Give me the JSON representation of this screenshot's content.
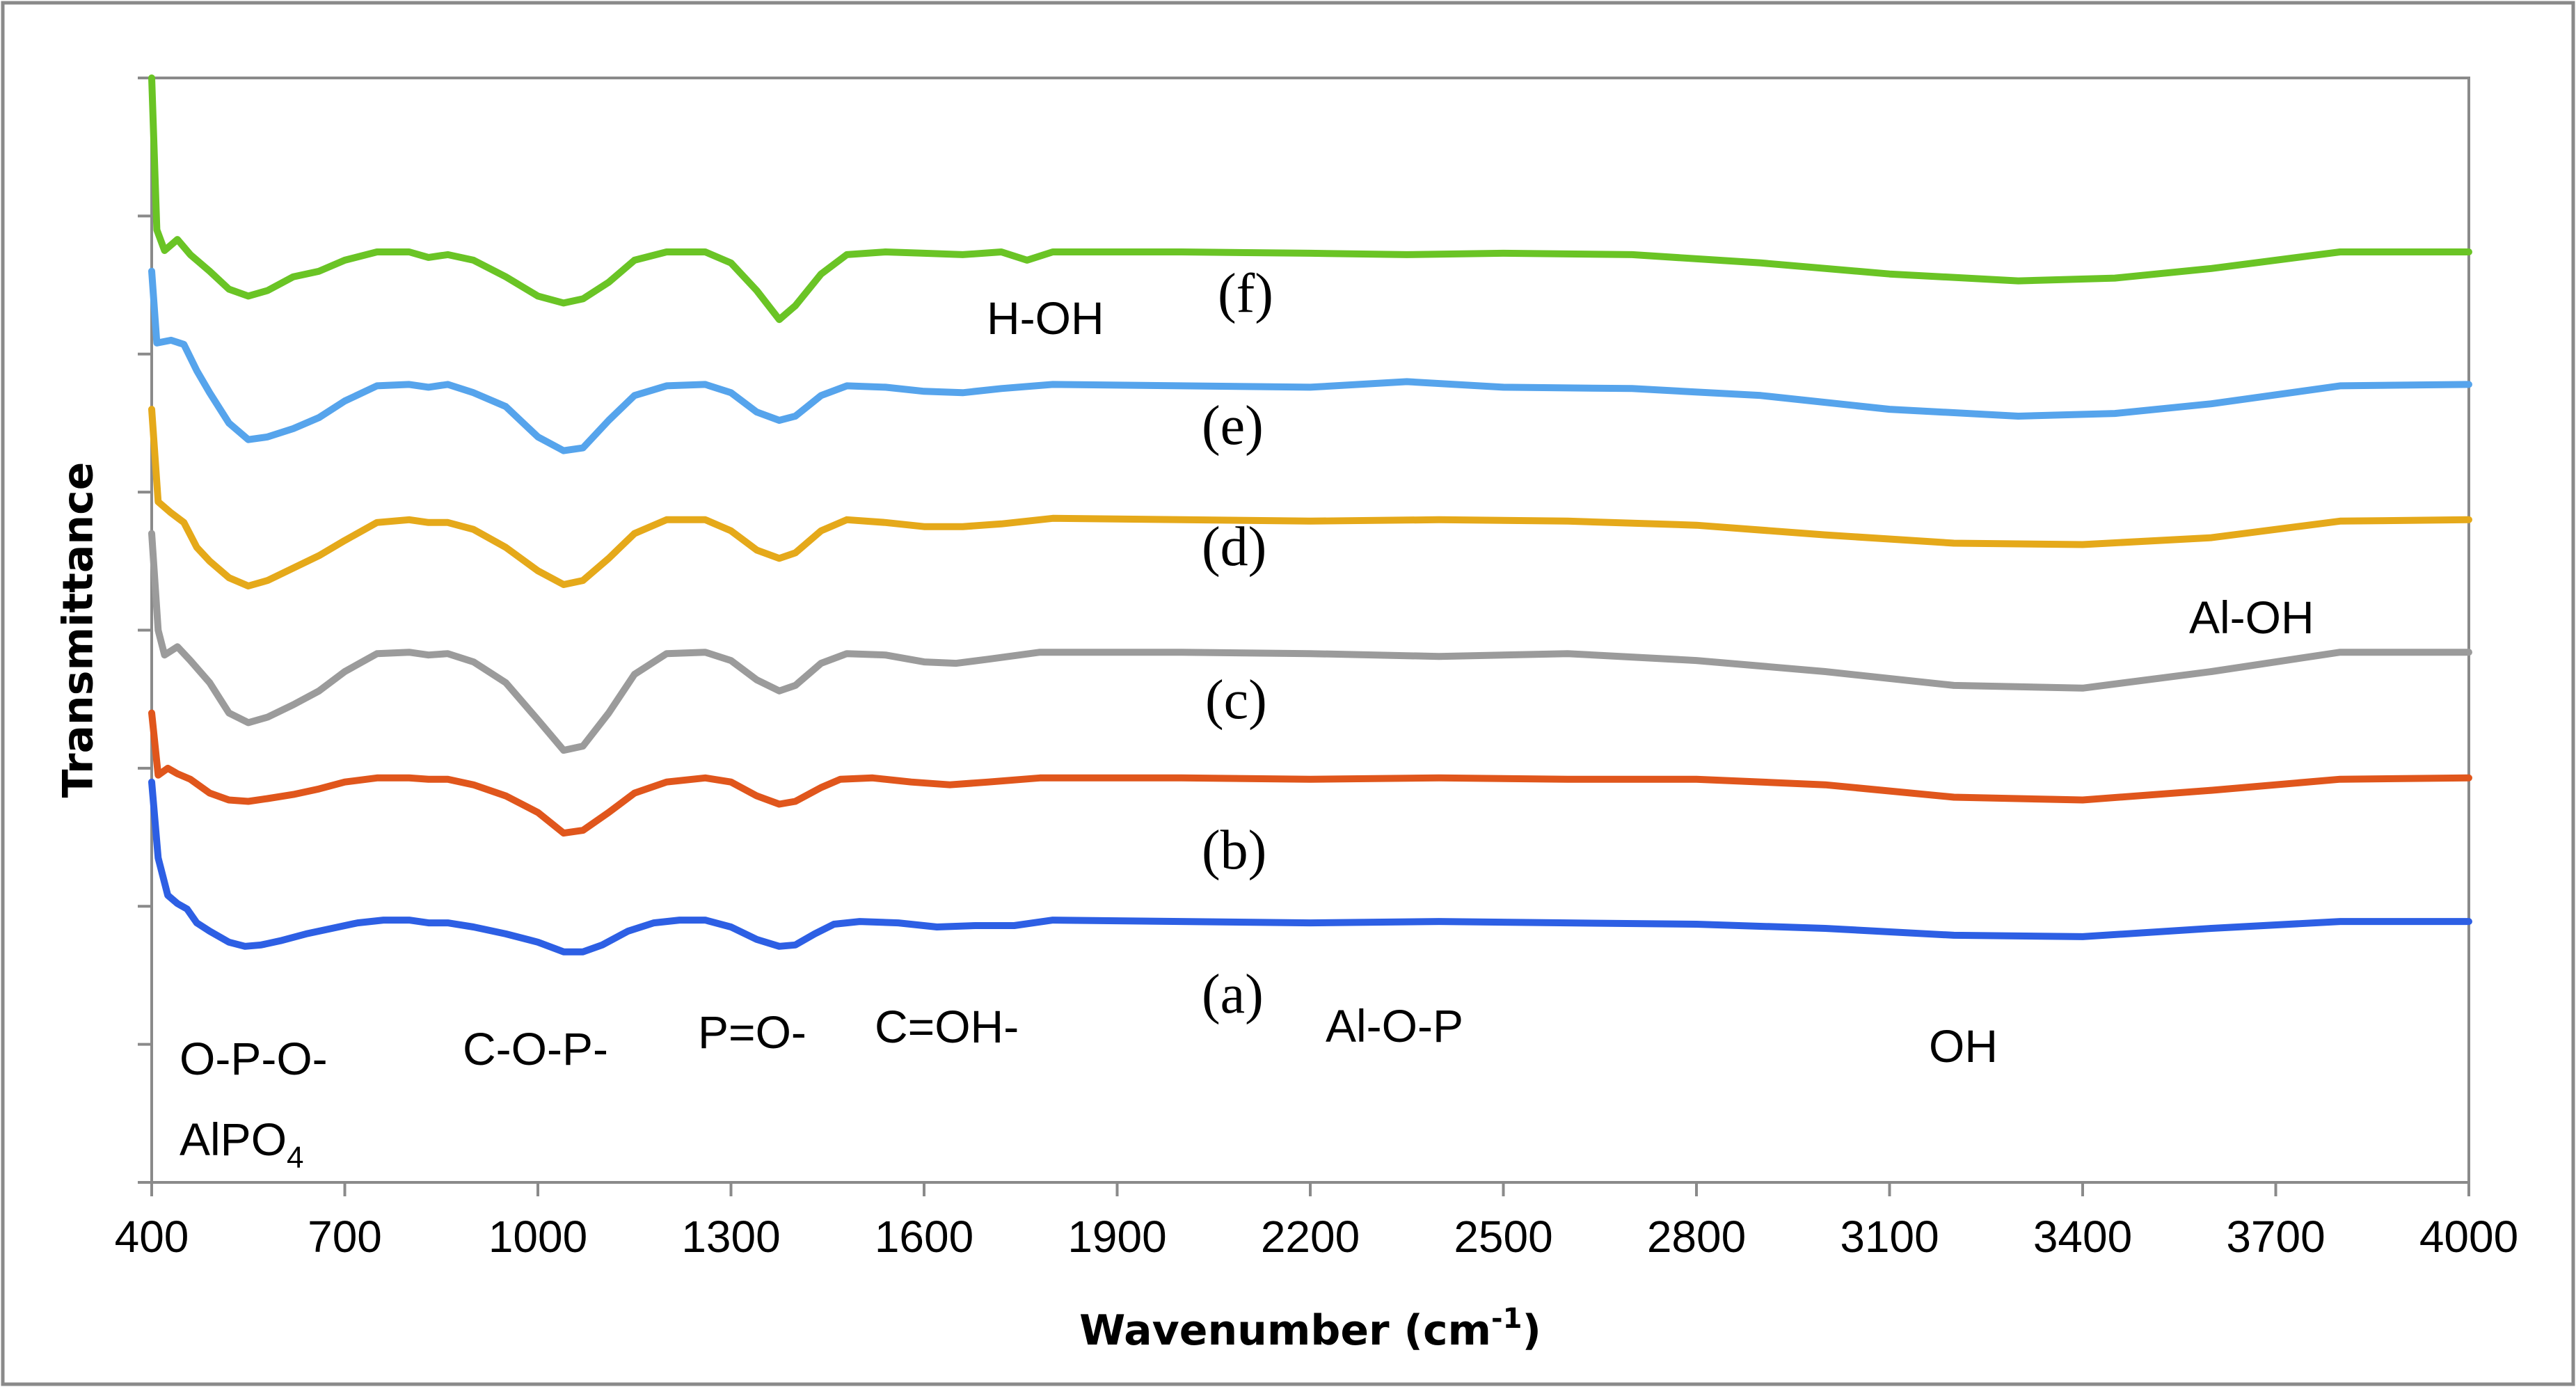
{
  "chart_data": {
    "type": "line",
    "title": "",
    "xlabel": "Wavenumber (cm",
    "xlabel_sup": "-1",
    "xlabel_suffix": ")",
    "ylabel": "Transmittance",
    "xlim": [
      400,
      4000
    ],
    "ylim": [
      0,
      8
    ],
    "grid": false,
    "x_ticks": [
      400,
      700,
      1000,
      1300,
      1600,
      1900,
      2200,
      2500,
      2800,
      3100,
      3400,
      3700,
      4000
    ],
    "x_tick_labels": [
      "400",
      "700",
      "1000",
      "1300",
      "1600",
      "1900",
      "2200",
      "2500",
      "2800",
      "3100",
      "3400",
      "3700",
      "4000"
    ],
    "y_ticks": [
      0,
      1,
      2,
      3,
      4,
      5,
      6,
      7,
      8
    ],
    "series": [
      {
        "name": "(a)",
        "color": "#2d5fe4",
        "points": [
          [
            400,
            2.9
          ],
          [
            410,
            2.35
          ],
          [
            425,
            2.08
          ],
          [
            440,
            2.02
          ],
          [
            455,
            1.98
          ],
          [
            470,
            1.88
          ],
          [
            490,
            1.82
          ],
          [
            520,
            1.74
          ],
          [
            545,
            1.71
          ],
          [
            570,
            1.72
          ],
          [
            600,
            1.75
          ],
          [
            640,
            1.8
          ],
          [
            680,
            1.84
          ],
          [
            720,
            1.88
          ],
          [
            760,
            1.9
          ],
          [
            800,
            1.9
          ],
          [
            830,
            1.88
          ],
          [
            860,
            1.88
          ],
          [
            900,
            1.85
          ],
          [
            950,
            1.8
          ],
          [
            1000,
            1.74
          ],
          [
            1040,
            1.67
          ],
          [
            1070,
            1.67
          ],
          [
            1100,
            1.72
          ],
          [
            1140,
            1.82
          ],
          [
            1180,
            1.88
          ],
          [
            1220,
            1.9
          ],
          [
            1260,
            1.9
          ],
          [
            1300,
            1.85
          ],
          [
            1340,
            1.76
          ],
          [
            1375,
            1.71
          ],
          [
            1400,
            1.72
          ],
          [
            1430,
            1.8
          ],
          [
            1460,
            1.87
          ],
          [
            1500,
            1.89
          ],
          [
            1560,
            1.88
          ],
          [
            1620,
            1.85
          ],
          [
            1680,
            1.86
          ],
          [
            1740,
            1.86
          ],
          [
            1800,
            1.9
          ],
          [
            2000,
            1.89
          ],
          [
            2200,
            1.88
          ],
          [
            2400,
            1.89
          ],
          [
            2600,
            1.88
          ],
          [
            2800,
            1.87
          ],
          [
            3000,
            1.84
          ],
          [
            3200,
            1.79
          ],
          [
            3400,
            1.78
          ],
          [
            3600,
            1.84
          ],
          [
            3800,
            1.89
          ],
          [
            4000,
            1.89
          ]
        ]
      },
      {
        "name": "(b)",
        "color": "#e0561c",
        "points": [
          [
            400,
            3.4
          ],
          [
            410,
            2.95
          ],
          [
            425,
            3.0
          ],
          [
            440,
            2.96
          ],
          [
            460,
            2.92
          ],
          [
            490,
            2.82
          ],
          [
            520,
            2.77
          ],
          [
            550,
            2.76
          ],
          [
            580,
            2.78
          ],
          [
            620,
            2.81
          ],
          [
            660,
            2.85
          ],
          [
            700,
            2.9
          ],
          [
            750,
            2.93
          ],
          [
            800,
            2.93
          ],
          [
            830,
            2.92
          ],
          [
            860,
            2.92
          ],
          [
            900,
            2.88
          ],
          [
            950,
            2.8
          ],
          [
            1000,
            2.68
          ],
          [
            1040,
            2.53
          ],
          [
            1070,
            2.55
          ],
          [
            1110,
            2.68
          ],
          [
            1150,
            2.82
          ],
          [
            1200,
            2.9
          ],
          [
            1260,
            2.93
          ],
          [
            1300,
            2.9
          ],
          [
            1340,
            2.8
          ],
          [
            1375,
            2.74
          ],
          [
            1400,
            2.76
          ],
          [
            1440,
            2.86
          ],
          [
            1470,
            2.92
          ],
          [
            1520,
            2.93
          ],
          [
            1580,
            2.9
          ],
          [
            1640,
            2.88
          ],
          [
            1700,
            2.9
          ],
          [
            1780,
            2.93
          ],
          [
            2000,
            2.93
          ],
          [
            2200,
            2.92
          ],
          [
            2400,
            2.93
          ],
          [
            2600,
            2.92
          ],
          [
            2800,
            2.92
          ],
          [
            3000,
            2.88
          ],
          [
            3200,
            2.79
          ],
          [
            3400,
            2.77
          ],
          [
            3600,
            2.84
          ],
          [
            3800,
            2.92
          ],
          [
            4000,
            2.93
          ]
        ]
      },
      {
        "name": "(c)",
        "color": "#9b9b9b",
        "points": [
          [
            400,
            4.7
          ],
          [
            410,
            4.0
          ],
          [
            420,
            3.82
          ],
          [
            440,
            3.88
          ],
          [
            460,
            3.78
          ],
          [
            490,
            3.62
          ],
          [
            520,
            3.4
          ],
          [
            550,
            3.33
          ],
          [
            580,
            3.37
          ],
          [
            620,
            3.46
          ],
          [
            660,
            3.56
          ],
          [
            700,
            3.7
          ],
          [
            750,
            3.83
          ],
          [
            800,
            3.84
          ],
          [
            830,
            3.82
          ],
          [
            860,
            3.83
          ],
          [
            900,
            3.77
          ],
          [
            950,
            3.62
          ],
          [
            1000,
            3.35
          ],
          [
            1040,
            3.13
          ],
          [
            1070,
            3.16
          ],
          [
            1110,
            3.4
          ],
          [
            1150,
            3.68
          ],
          [
            1200,
            3.83
          ],
          [
            1260,
            3.84
          ],
          [
            1300,
            3.78
          ],
          [
            1340,
            3.64
          ],
          [
            1375,
            3.56
          ],
          [
            1400,
            3.6
          ],
          [
            1440,
            3.76
          ],
          [
            1480,
            3.83
          ],
          [
            1540,
            3.82
          ],
          [
            1600,
            3.77
          ],
          [
            1650,
            3.76
          ],
          [
            1700,
            3.79
          ],
          [
            1780,
            3.84
          ],
          [
            2000,
            3.84
          ],
          [
            2200,
            3.83
          ],
          [
            2400,
            3.81
          ],
          [
            2600,
            3.83
          ],
          [
            2800,
            3.78
          ],
          [
            3000,
            3.7
          ],
          [
            3200,
            3.6
          ],
          [
            3400,
            3.58
          ],
          [
            3600,
            3.7
          ],
          [
            3800,
            3.84
          ],
          [
            4000,
            3.84
          ]
        ]
      },
      {
        "name": "(d)",
        "color": "#e5a91a",
        "points": [
          [
            400,
            5.6
          ],
          [
            410,
            4.93
          ],
          [
            430,
            4.85
          ],
          [
            450,
            4.78
          ],
          [
            470,
            4.6
          ],
          [
            490,
            4.5
          ],
          [
            520,
            4.38
          ],
          [
            550,
            4.32
          ],
          [
            580,
            4.36
          ],
          [
            620,
            4.45
          ],
          [
            660,
            4.54
          ],
          [
            700,
            4.65
          ],
          [
            750,
            4.78
          ],
          [
            800,
            4.8
          ],
          [
            830,
            4.78
          ],
          [
            860,
            4.78
          ],
          [
            900,
            4.73
          ],
          [
            950,
            4.6
          ],
          [
            1000,
            4.43
          ],
          [
            1040,
            4.33
          ],
          [
            1070,
            4.36
          ],
          [
            1110,
            4.52
          ],
          [
            1150,
            4.7
          ],
          [
            1200,
            4.8
          ],
          [
            1260,
            4.8
          ],
          [
            1300,
            4.72
          ],
          [
            1340,
            4.58
          ],
          [
            1375,
            4.52
          ],
          [
            1400,
            4.56
          ],
          [
            1440,
            4.72
          ],
          [
            1480,
            4.8
          ],
          [
            1540,
            4.78
          ],
          [
            1600,
            4.75
          ],
          [
            1660,
            4.75
          ],
          [
            1720,
            4.77
          ],
          [
            1800,
            4.81
          ],
          [
            2000,
            4.8
          ],
          [
            2200,
            4.79
          ],
          [
            2400,
            4.8
          ],
          [
            2600,
            4.79
          ],
          [
            2800,
            4.76
          ],
          [
            3000,
            4.69
          ],
          [
            3200,
            4.63
          ],
          [
            3400,
            4.62
          ],
          [
            3600,
            4.67
          ],
          [
            3800,
            4.79
          ],
          [
            4000,
            4.8
          ]
        ]
      },
      {
        "name": "(e)",
        "color": "#56a4ec",
        "points": [
          [
            400,
            6.6
          ],
          [
            408,
            6.08
          ],
          [
            430,
            6.1
          ],
          [
            450,
            6.07
          ],
          [
            470,
            5.88
          ],
          [
            490,
            5.72
          ],
          [
            520,
            5.5
          ],
          [
            550,
            5.38
          ],
          [
            580,
            5.4
          ],
          [
            620,
            5.46
          ],
          [
            660,
            5.54
          ],
          [
            700,
            5.66
          ],
          [
            750,
            5.77
          ],
          [
            800,
            5.78
          ],
          [
            830,
            5.76
          ],
          [
            860,
            5.78
          ],
          [
            900,
            5.72
          ],
          [
            950,
            5.62
          ],
          [
            1000,
            5.4
          ],
          [
            1040,
            5.3
          ],
          [
            1070,
            5.32
          ],
          [
            1110,
            5.52
          ],
          [
            1150,
            5.7
          ],
          [
            1200,
            5.77
          ],
          [
            1260,
            5.78
          ],
          [
            1300,
            5.72
          ],
          [
            1340,
            5.58
          ],
          [
            1375,
            5.52
          ],
          [
            1400,
            5.55
          ],
          [
            1440,
            5.7
          ],
          [
            1480,
            5.77
          ],
          [
            1540,
            5.76
          ],
          [
            1600,
            5.73
          ],
          [
            1660,
            5.72
          ],
          [
            1720,
            5.75
          ],
          [
            1800,
            5.78
          ],
          [
            2000,
            5.77
          ],
          [
            2200,
            5.76
          ],
          [
            2350,
            5.8
          ],
          [
            2500,
            5.76
          ],
          [
            2700,
            5.75
          ],
          [
            2900,
            5.7
          ],
          [
            3100,
            5.6
          ],
          [
            3300,
            5.55
          ],
          [
            3450,
            5.57
          ],
          [
            3600,
            5.64
          ],
          [
            3800,
            5.77
          ],
          [
            4000,
            5.78
          ]
        ]
      },
      {
        "name": "(f)",
        "color": "#6ac425",
        "points": [
          [
            400,
            8.0
          ],
          [
            408,
            6.9
          ],
          [
            420,
            6.75
          ],
          [
            440,
            6.83
          ],
          [
            460,
            6.72
          ],
          [
            490,
            6.6
          ],
          [
            520,
            6.47
          ],
          [
            550,
            6.42
          ],
          [
            580,
            6.46
          ],
          [
            620,
            6.56
          ],
          [
            660,
            6.6
          ],
          [
            700,
            6.68
          ],
          [
            750,
            6.74
          ],
          [
            800,
            6.74
          ],
          [
            830,
            6.7
          ],
          [
            860,
            6.72
          ],
          [
            900,
            6.68
          ],
          [
            950,
            6.56
          ],
          [
            1000,
            6.42
          ],
          [
            1040,
            6.37
          ],
          [
            1070,
            6.4
          ],
          [
            1110,
            6.52
          ],
          [
            1150,
            6.68
          ],
          [
            1200,
            6.74
          ],
          [
            1260,
            6.74
          ],
          [
            1300,
            6.66
          ],
          [
            1340,
            6.46
          ],
          [
            1375,
            6.25
          ],
          [
            1400,
            6.35
          ],
          [
            1440,
            6.58
          ],
          [
            1480,
            6.72
          ],
          [
            1540,
            6.74
          ],
          [
            1600,
            6.73
          ],
          [
            1660,
            6.72
          ],
          [
            1720,
            6.74
          ],
          [
            1760,
            6.68
          ],
          [
            1800,
            6.74
          ],
          [
            2000,
            6.74
          ],
          [
            2200,
            6.73
          ],
          [
            2350,
            6.72
          ],
          [
            2500,
            6.73
          ],
          [
            2700,
            6.72
          ],
          [
            2900,
            6.66
          ],
          [
            3100,
            6.58
          ],
          [
            3300,
            6.53
          ],
          [
            3450,
            6.55
          ],
          [
            3600,
            6.62
          ],
          [
            3800,
            6.74
          ],
          [
            4000,
            6.74
          ]
        ]
      }
    ],
    "annotations": [
      {
        "id": "band-opo",
        "text": "O-P-O-"
      },
      {
        "id": "band-alpo4",
        "text": "AlPO",
        "sub": "4"
      },
      {
        "id": "band-cop",
        "text": "C-O-P-"
      },
      {
        "id": "band-po",
        "text": "P=O-"
      },
      {
        "id": "band-coh",
        "text": "C=OH-"
      },
      {
        "id": "band-hoh",
        "text": "H-OH"
      },
      {
        "id": "band-alop",
        "text": "Al-O-P"
      },
      {
        "id": "band-oh",
        "text": "OH"
      },
      {
        "id": "band-aloh",
        "text": "Al-OH"
      }
    ]
  }
}
